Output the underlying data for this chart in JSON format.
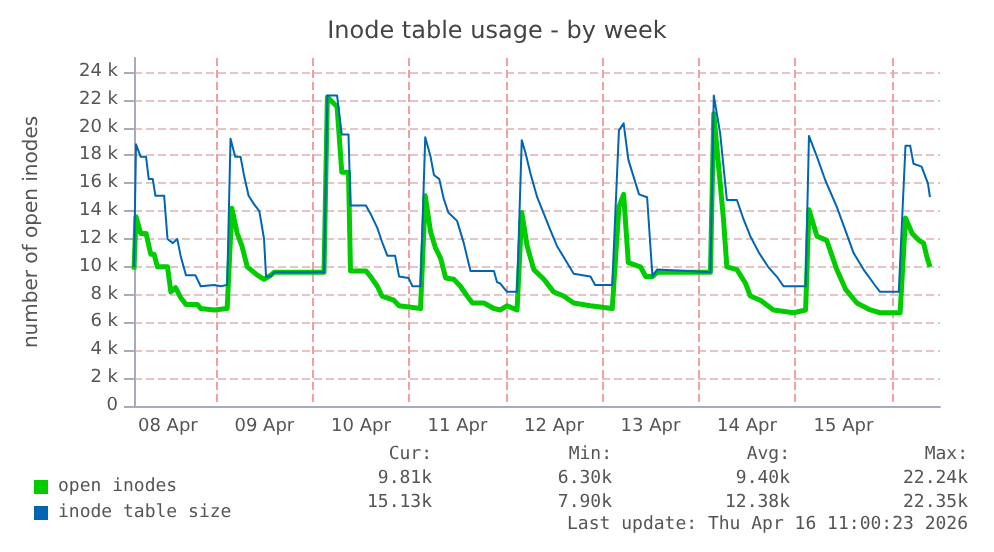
{
  "chart_data": {
    "type": "line",
    "title": "Inode table usage - by week",
    "ylabel": "number of open inodes",
    "xlim": [
      "2026-04-08T03:35",
      "2026-04-16T12:00"
    ],
    "xticks": [
      {
        "value": "2026-04-08T12:00",
        "label": "08 Apr"
      },
      {
        "value": "2026-04-09T12:00",
        "label": "09 Apr"
      },
      {
        "value": "2026-04-10T12:00",
        "label": "10 Apr"
      },
      {
        "value": "2026-04-11T12:00",
        "label": "11 Apr"
      },
      {
        "value": "2026-04-12T12:00",
        "label": "12 Apr"
      },
      {
        "value": "2026-04-13T12:00",
        "label": "13 Apr"
      },
      {
        "value": "2026-04-14T12:00",
        "label": "14 Apr"
      },
      {
        "value": "2026-04-15T12:00",
        "label": "15 Apr"
      },
      {
        "value": "2026-04-09T00:00",
        "label": null
      },
      {
        "value": "2026-04-10T00:00",
        "label": null
      },
      {
        "value": "2026-04-11T00:00",
        "label": null
      },
      {
        "value": "2026-04-12T00:00",
        "label": null
      },
      {
        "value": "2026-04-13T00:00",
        "label": null
      },
      {
        "value": "2026-04-14T00:00",
        "label": null
      },
      {
        "value": "2026-04-15T00:00",
        "label": null
      },
      {
        "value": "2026-04-16T00:00",
        "label": null
      }
    ],
    "ylim": [
      0,
      25
    ],
    "yticks": [
      0,
      {
        "value": 2,
        "label": "2 k"
      },
      {
        "value": 4,
        "label": "4 k"
      },
      {
        "value": 6,
        "label": "6 k"
      },
      {
        "value": 8,
        "label": "8 k"
      },
      {
        "value": 10,
        "label": "10 k"
      },
      {
        "value": 12,
        "label": "12 k"
      },
      {
        "value": 14,
        "label": "14 k"
      },
      {
        "value": 16,
        "label": "16 k"
      },
      {
        "value": 18,
        "label": "18 k"
      },
      {
        "value": 20,
        "label": "20 k"
      },
      {
        "value": 22,
        "label": "22 k"
      },
      {
        "value": 24,
        "label": "24 k"
      }
    ],
    "grid": true,
    "legend": "bottom left",
    "marker": "none",
    "line_style": "solid",
    "series": [
      {
        "name": "open inodes",
        "color": "#00cc00",
        "x": [
          "2026-04-08T03:35",
          "2026-04-08T04:05",
          "2026-04-08T05:15",
          "2026-04-08T06:35",
          "2026-04-08T07:45",
          "2026-04-08T08:35",
          "2026-04-08T09:25",
          "2026-04-08T11:55",
          "2026-04-08T12:45",
          "2026-04-08T13:55",
          "2026-04-08T15:10",
          "2026-04-08T16:30",
          "2026-04-08T19:20",
          "2026-04-08T20:10",
          "2026-04-08T23:30",
          "2026-04-09T02:45",
          "2026-04-09T03:55",
          "2026-04-09T05:15",
          "2026-04-09T06:25",
          "2026-04-09T07:45",
          "2026-04-09T10:15",
          "2026-04-09T11:55",
          "2026-04-09T13:35",
          "2026-04-09T14:25",
          "2026-04-10T02:50",
          "2026-04-10T03:40",
          "2026-04-10T06:05",
          "2026-04-10T07:15",
          "2026-04-10T08:55",
          "2026-04-10T09:25",
          "2026-04-10T13:15",
          "2026-04-10T14:25",
          "2026-04-10T16:05",
          "2026-04-10T17:15",
          "2026-04-10T20:10",
          "2026-04-10T21:30",
          "2026-04-11T02:50",
          "2026-04-11T04:00",
          "2026-04-11T05:20",
          "2026-04-11T06:30",
          "2026-04-11T07:50",
          "2026-04-11T09:05",
          "2026-04-11T11:05",
          "2026-04-11T12:45",
          "2026-04-11T14:25",
          "2026-04-11T15:45",
          "2026-04-11T18:35",
          "2026-04-11T21:05",
          "2026-04-11T22:40",
          "2026-04-12T00:20",
          "2026-04-12T02:50",
          "2026-04-12T04:00",
          "2026-04-12T05:20",
          "2026-04-12T07:00",
          "2026-04-12T09:30",
          "2026-04-12T11:55",
          "2026-04-12T14:25",
          "2026-04-12T16:55",
          "2026-04-12T21:05",
          "2026-04-13T02:30",
          "2026-04-13T04:10",
          "2026-04-13T05:20",
          "2026-04-13T06:30",
          "2026-04-13T09:30",
          "2026-04-13T10:50",
          "2026-04-13T12:30",
          "2026-04-13T13:40",
          "2026-04-14T02:55",
          "2026-04-14T03:45",
          "2026-04-14T06:10",
          "2026-04-14T07:00",
          "2026-04-14T09:30",
          "2026-04-14T11:40",
          "2026-04-14T12:50",
          "2026-04-14T15:20",
          "2026-04-14T18:35",
          "2026-04-14T23:35",
          "2026-04-15T02:35",
          "2026-04-15T03:25",
          "2026-04-15T05:25",
          "2026-04-15T07:50",
          "2026-04-15T10:20",
          "2026-04-15T12:30",
          "2026-04-15T15:20",
          "2026-04-15T18:40",
          "2026-04-15T21:05",
          "2026-04-16T02:05",
          "2026-04-16T03:25",
          "2026-04-16T05:05",
          "2026-04-16T06:45",
          "2026-04-16T07:55",
          "2026-04-16T08:45",
          "2026-04-16T09:30"
        ],
        "values": [
          9.8,
          13.6,
          12.4,
          12.4,
          10.9,
          10.9,
          10.0,
          10.0,
          8.2,
          8.5,
          7.8,
          7.3,
          7.3,
          7.0,
          6.9,
          7.0,
          14.2,
          12.4,
          11.5,
          10.0,
          9.4,
          9.1,
          9.4,
          9.6,
          9.6,
          22.2,
          21.5,
          16.8,
          16.8,
          9.7,
          9.7,
          9.3,
          8.6,
          7.9,
          7.6,
          7.2,
          7.0,
          15.1,
          12.5,
          11.4,
          10.6,
          9.2,
          9.1,
          8.6,
          7.9,
          7.4,
          7.4,
          7.0,
          6.9,
          7.2,
          6.9,
          13.9,
          11.5,
          9.8,
          9.1,
          8.2,
          7.9,
          7.4,
          7.2,
          7.0,
          14.3,
          15.2,
          10.3,
          10.0,
          9.3,
          9.3,
          9.6,
          9.6,
          21.0,
          13.4,
          10.0,
          9.8,
          8.8,
          7.9,
          7.6,
          6.9,
          6.7,
          6.9,
          14.1,
          12.2,
          11.9,
          9.8,
          8.4,
          7.4,
          6.9,
          6.7,
          6.7,
          13.5,
          12.4,
          11.9,
          11.7,
          10.7,
          10.0
        ]
      },
      {
        "name": "inode table size",
        "color": "#0066b3",
        "x": [
          "2026-04-08T03:35",
          "2026-04-08T04:05",
          "2026-04-08T05:15",
          "2026-04-08T06:35",
          "2026-04-08T07:15",
          "2026-04-08T08:15",
          "2026-04-08T08:55",
          "2026-04-08T11:05",
          "2026-04-08T11:55",
          "2026-04-08T13:15",
          "2026-04-08T14:20",
          "2026-04-08T15:10",
          "2026-04-08T16:30",
          "2026-04-08T18:50",
          "2026-04-08T20:10",
          "2026-04-08T23:30",
          "2026-04-09T01:10",
          "2026-04-09T02:45",
          "2026-04-09T03:35",
          "2026-04-09T04:45",
          "2026-04-09T06:05",
          "2026-04-09T06:55",
          "2026-04-09T08:05",
          "2026-04-09T09:25",
          "2026-04-09T10:45",
          "2026-04-09T11:55",
          "2026-04-09T12:25",
          "2026-04-09T13:35",
          "2026-04-09T14:25",
          "2026-04-10T02:50",
          "2026-04-10T03:40",
          "2026-04-10T06:05",
          "2026-04-10T07:15",
          "2026-04-10T08:55",
          "2026-04-10T09:25",
          "2026-04-10T13:15",
          "2026-04-10T14:25",
          "2026-04-10T16:05",
          "2026-04-10T17:15",
          "2026-04-10T18:35",
          "2026-04-10T20:30",
          "2026-04-10T21:30",
          "2026-04-10T23:50",
          "2026-04-11T00:50",
          "2026-04-11T02:50",
          "2026-04-11T04:00",
          "2026-04-11T05:20",
          "2026-04-11T06:10",
          "2026-04-11T07:30",
          "2026-04-11T08:35",
          "2026-04-11T09:45",
          "2026-04-11T11:55",
          "2026-04-11T13:35",
          "2026-04-11T15:15",
          "2026-04-11T21:05",
          "2026-04-11T21:50",
          "2026-04-11T22:40",
          "2026-04-12T00:20",
          "2026-04-12T02:50",
          "2026-04-12T04:00",
          "2026-04-12T05:00",
          "2026-04-12T06:10",
          "2026-04-12T07:50",
          "2026-04-12T09:30",
          "2026-04-12T11:10",
          "2026-04-12T12:45",
          "2026-04-12T14:25",
          "2026-04-12T16:55",
          "2026-04-12T21:05",
          "2026-04-12T22:15",
          "2026-04-13T02:30",
          "2026-04-13T04:10",
          "2026-04-13T05:20",
          "2026-04-13T06:30",
          "2026-04-13T09:10",
          "2026-04-13T11:10",
          "2026-04-13T12:30",
          "2026-04-13T13:40",
          "2026-04-14T02:55",
          "2026-04-14T03:45",
          "2026-04-14T05:20",
          "2026-04-14T07:00",
          "2026-04-14T09:30",
          "2026-04-14T11:10",
          "2026-04-14T12:50",
          "2026-04-14T15:00",
          "2026-04-14T17:15",
          "2026-04-14T19:25",
          "2026-04-14T21:05",
          "2026-04-15T02:35",
          "2026-04-15T03:25",
          "2026-04-15T05:25",
          "2026-04-15T07:30",
          "2026-04-15T10:20",
          "2026-04-15T12:30",
          "2026-04-15T14:30",
          "2026-04-15T17:00",
          "2026-04-15T19:30",
          "2026-04-15T21:05",
          "2026-04-16T01:45",
          "2026-04-16T03:25",
          "2026-04-16T04:35",
          "2026-04-16T05:25",
          "2026-04-16T07:25",
          "2026-04-16T09:00",
          "2026-04-16T09:30"
        ],
        "values": [
          10.0,
          18.8,
          17.9,
          17.9,
          16.3,
          16.3,
          15.1,
          15.1,
          12.0,
          11.7,
          12.0,
          10.8,
          9.4,
          9.4,
          8.6,
          8.7,
          8.6,
          8.7,
          19.2,
          17.9,
          17.9,
          16.6,
          15.1,
          14.5,
          14.0,
          12.0,
          9.3,
          9.3,
          9.6,
          9.6,
          22.3,
          22.3,
          19.5,
          19.5,
          14.4,
          14.4,
          13.8,
          12.8,
          11.8,
          10.8,
          10.8,
          9.3,
          9.2,
          8.6,
          8.6,
          19.3,
          17.9,
          16.6,
          16.3,
          14.9,
          13.9,
          13.3,
          11.7,
          9.7,
          9.7,
          8.9,
          8.8,
          8.2,
          8.2,
          19.1,
          18.1,
          16.7,
          15.0,
          13.8,
          12.6,
          11.5,
          10.7,
          9.5,
          9.3,
          8.7,
          8.7,
          19.8,
          20.3,
          17.7,
          15.2,
          15.0,
          9.3,
          9.8,
          9.6,
          22.3,
          19.6,
          14.8,
          14.8,
          13.4,
          12.2,
          11.0,
          10.0,
          9.3,
          8.6,
          8.6,
          19.4,
          17.9,
          16.2,
          14.3,
          12.6,
          11.0,
          9.8,
          8.8,
          8.2,
          8.2,
          18.7,
          18.7,
          17.4,
          17.2,
          16.0,
          15.0
        ]
      }
    ],
    "annotations": [
      "Cur:",
      "Min:",
      "Avg:",
      "Max:",
      "9.81k",
      "6.30k",
      "9.40k",
      "22.24k",
      "15.13k",
      "7.90k",
      "12.38k",
      "22.35k",
      "Last update: Thu Apr 16 11:00:23 2026"
    ]
  }
}
